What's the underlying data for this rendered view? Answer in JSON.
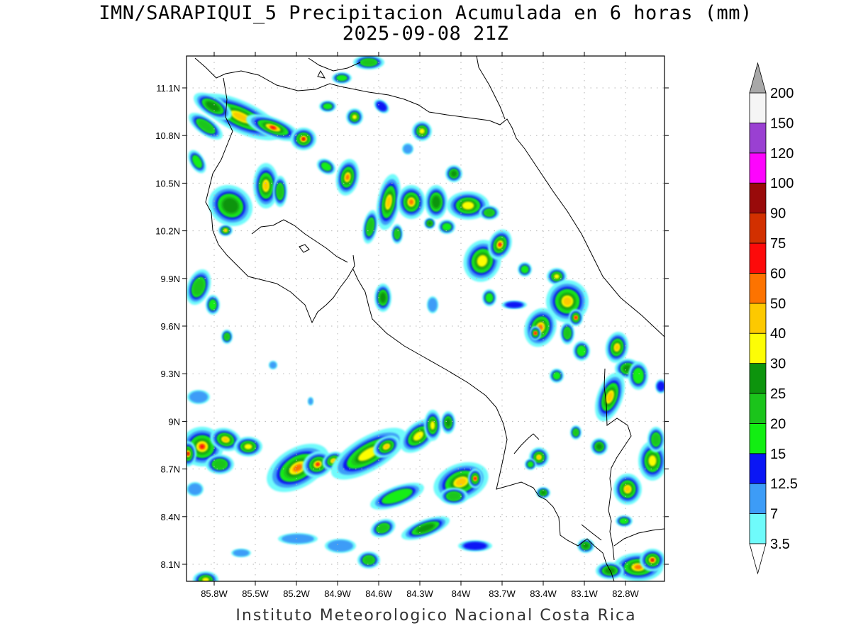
{
  "title": "IMN/SARAPIQUI_5 Precipitacion Acumulada en 6 horas (mm)",
  "subtitle": "2025-09-08 21Z",
  "footer": "Instituto Meteorologico Nacional Costa Rica",
  "map": {
    "region": "Costa Rica",
    "lon_range": [
      -86.0,
      -82.5
    ],
    "lat_range": [
      8.0,
      11.3
    ],
    "grid": true,
    "lat_ticks": [
      "11.1N",
      "10.8N",
      "10.5N",
      "10.2N",
      "9.9N",
      "9.6N",
      "9.3N",
      "9N",
      "8.7N",
      "8.4N",
      "8.1N"
    ],
    "lon_ticks": [
      "85.8W",
      "85.5W",
      "85.2W",
      "84.9W",
      "84.6W",
      "84.3W",
      "84W",
      "83.7W",
      "83.4W",
      "83.1W",
      "82.8W"
    ]
  },
  "colorbar": {
    "levels": [
      "3.5",
      "7",
      "12.5",
      "15",
      "20",
      "25",
      "30",
      "40",
      "50",
      "60",
      "75",
      "90",
      "100",
      "120",
      "150",
      "200"
    ],
    "colors": [
      "#6ffbfb",
      "#3d9cf7",
      "#0a16f5",
      "#12ee12",
      "#1bc41b",
      "#0d940d",
      "#fdfd06",
      "#fdc900",
      "#fd7300",
      "#fd0a0a",
      "#d23000",
      "#990a0a",
      "#fd05fd",
      "#9a40d2",
      "#f5f5f5",
      "#a8a8a8"
    ]
  }
}
